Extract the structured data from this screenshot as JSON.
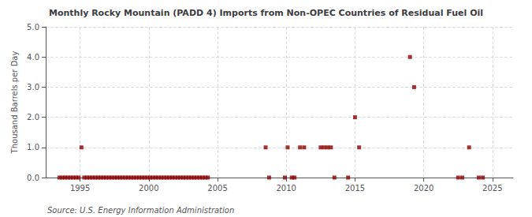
{
  "chart_data": {
    "type": "scatter",
    "title": "Monthly Rocky Mountain (PADD 4) Imports from Non-OPEC Countries of Residual Fuel Oil",
    "ylabel": "Thousand Barrels per Day",
    "annotation": "Source: U.S. Energy Information Administration",
    "color": "#8b0000",
    "marker": "square",
    "grid": true,
    "xlim": [
      1992.5,
      2026.5
    ],
    "xticks": [
      1995,
      2000,
      2005,
      2010,
      2015,
      2020,
      2025
    ],
    "ylim": [
      0.0,
      5.0
    ],
    "yticks": [
      {
        "value": 0.0,
        "label": "0.0"
      },
      {
        "value": 1.0,
        "label": "1.0"
      },
      {
        "value": 2.0,
        "label": "2.0"
      },
      {
        "value": 3.0,
        "label": "3.0"
      },
      {
        "value": 4.0,
        "label": "4.0"
      },
      {
        "value": 5.0,
        "label": "5.0"
      }
    ],
    "x": [
      1993.5,
      1993.7,
      1993.9,
      1994.1,
      1994.3,
      1994.5,
      1994.7,
      1994.9,
      1995.1,
      1995.3,
      1995.5,
      1995.7,
      1995.9,
      1996.1,
      1996.3,
      1996.5,
      1996.7,
      1996.9,
      1997.1,
      1997.3,
      1997.5,
      1997.7,
      1997.9,
      1998.1,
      1998.3,
      1998.5,
      1998.7,
      1998.9,
      1999.1,
      1999.3,
      1999.5,
      1999.7,
      1999.9,
      2000.1,
      2000.3,
      2000.5,
      2000.7,
      2000.9,
      2001.1,
      2001.3,
      2001.5,
      2001.7,
      2001.9,
      2002.1,
      2002.3,
      2002.5,
      2002.7,
      2002.9,
      2003.1,
      2003.3,
      2003.5,
      2003.7,
      2003.9,
      2004.1,
      2004.3,
      2008.5,
      2008.75,
      2009.9,
      2010.1,
      2010.4,
      2010.6,
      2011.0,
      2011.3,
      2012.5,
      2012.75,
      2013.0,
      2013.25,
      2013.5,
      2014.5,
      2015.0,
      2015.3,
      2019.0,
      2019.3,
      2022.5,
      2022.8,
      2023.3,
      2024.0,
      2024.3
    ],
    "values": [
      0.0,
      0.0,
      0.0,
      0.0,
      0.0,
      0.0,
      0.0,
      0.0,
      1.0,
      0.0,
      0.0,
      0.0,
      0.0,
      0.0,
      0.0,
      0.0,
      0.0,
      0.0,
      0.0,
      0.0,
      0.0,
      0.0,
      0.0,
      0.0,
      0.0,
      0.0,
      0.0,
      0.0,
      0.0,
      0.0,
      0.0,
      0.0,
      0.0,
      0.0,
      0.0,
      0.0,
      0.0,
      0.0,
      0.0,
      0.0,
      0.0,
      0.0,
      0.0,
      0.0,
      0.0,
      0.0,
      0.0,
      0.0,
      0.0,
      0.0,
      0.0,
      0.0,
      0.0,
      0.0,
      0.0,
      1.0,
      0.0,
      0.0,
      1.0,
      0.0,
      0.0,
      1.0,
      1.0,
      1.0,
      1.0,
      1.0,
      1.0,
      0.0,
      0.0,
      2.0,
      1.0,
      4.0,
      3.0,
      0.0,
      0.0,
      1.0,
      0.0,
      0.0
    ]
  }
}
